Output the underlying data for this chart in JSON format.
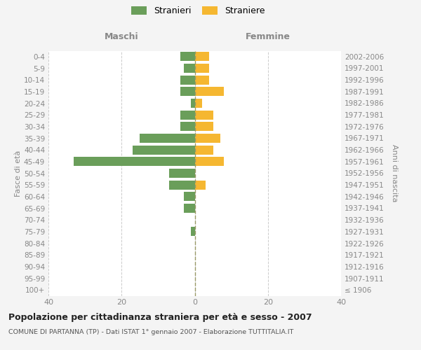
{
  "age_groups": [
    "100+",
    "95-99",
    "90-94",
    "85-89",
    "80-84",
    "75-79",
    "70-74",
    "65-69",
    "60-64",
    "55-59",
    "50-54",
    "45-49",
    "40-44",
    "35-39",
    "30-34",
    "25-29",
    "20-24",
    "15-19",
    "10-14",
    "5-9",
    "0-4"
  ],
  "birth_years": [
    "≤ 1906",
    "1907-1911",
    "1912-1916",
    "1917-1921",
    "1922-1926",
    "1927-1931",
    "1932-1936",
    "1937-1941",
    "1942-1946",
    "1947-1951",
    "1952-1956",
    "1957-1961",
    "1962-1966",
    "1967-1971",
    "1972-1976",
    "1977-1981",
    "1982-1986",
    "1987-1991",
    "1992-1996",
    "1997-2001",
    "2002-2006"
  ],
  "maschi": [
    0,
    0,
    0,
    0,
    0,
    1,
    0,
    3,
    3,
    7,
    7,
    33,
    17,
    15,
    4,
    4,
    1,
    4,
    4,
    3,
    4
  ],
  "femmine": [
    0,
    0,
    0,
    0,
    0,
    0,
    0,
    0,
    0,
    3,
    0,
    8,
    5,
    7,
    5,
    5,
    2,
    8,
    4,
    4,
    4
  ],
  "color_maschi": "#6a9e5a",
  "color_femmine": "#f5b731",
  "title": "Popolazione per cittadinanza straniera per età e sesso - 2007",
  "subtitle": "COMUNE DI PARTANNA (TP) - Dati ISTAT 1° gennaio 2007 - Elaborazione TUTTITALIA.IT",
  "xlabel_left": "Maschi",
  "xlabel_right": "Femmine",
  "ylabel_left": "Fasce di età",
  "ylabel_right": "Anni di nascita",
  "xlim": 40,
  "legend_stranieri": "Stranieri",
  "legend_straniere": "Straniere",
  "background_color": "#f4f4f4",
  "plot_bg_color": "#ffffff",
  "grid_color": "#cccccc",
  "text_color": "#888888",
  "title_color": "#222222",
  "subtitle_color": "#555555"
}
